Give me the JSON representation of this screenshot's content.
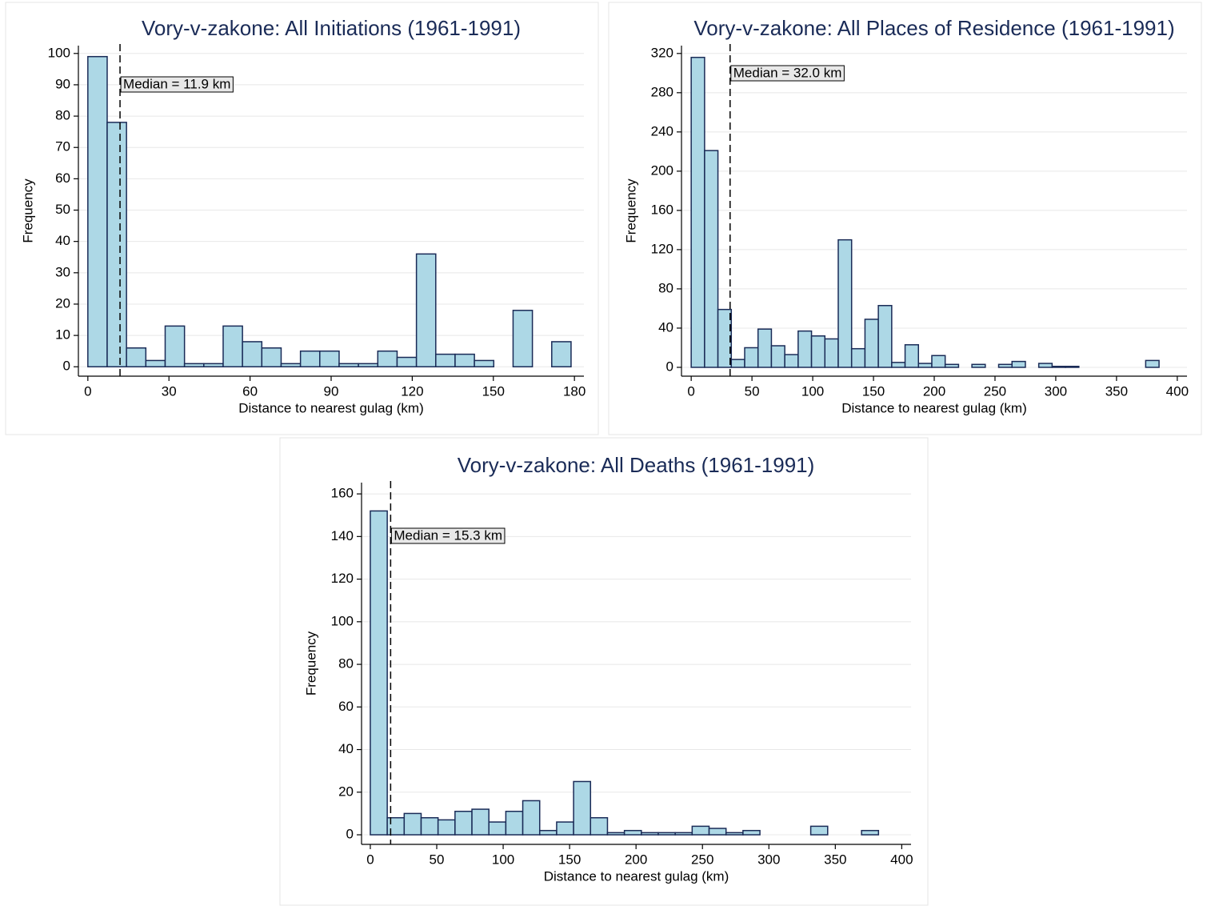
{
  "chart_data": [
    {
      "type": "histogram",
      "title": "Vory-v-zakone: All Initiations (1961-1991)",
      "xlabel": "Distance to nearest gulag (km)",
      "ylabel": "Frequency",
      "bins": [
        0,
        7.15,
        14.3,
        21.45,
        28.6,
        35.75,
        42.9,
        50.05,
        57.2,
        64.35,
        71.5,
        78.65,
        85.8,
        92.95,
        100.1,
        107.25,
        114.4,
        121.55,
        128.7,
        135.85,
        143,
        150.15,
        157.3,
        164.45,
        171.6,
        178.75
      ],
      "values": [
        99,
        78,
        6,
        2,
        13,
        1,
        1,
        13,
        8,
        6,
        1,
        5,
        5,
        1,
        1,
        5,
        3,
        36,
        4,
        4,
        2,
        0,
        18,
        0,
        8
      ],
      "color": "#add8e6",
      "xlim": [
        -3.5,
        183.5
      ],
      "ylim": [
        -3,
        102.5
      ],
      "xticks": [
        0,
        30,
        60,
        90,
        120,
        150,
        180
      ],
      "yticks": [
        0,
        10,
        20,
        30,
        40,
        50,
        60,
        70,
        80,
        90,
        100
      ],
      "grid": true,
      "median": {
        "value": 11.9,
        "label": "Median = 11.9 km"
      }
    },
    {
      "type": "histogram",
      "title": "Vory-v-zakone: All Places of Residence (1961-1991)",
      "xlabel": "Distance to nearest gulag (km)",
      "ylabel": "Frequency",
      "bins": [
        0,
        11,
        22,
        33,
        44,
        55,
        66,
        77,
        88,
        99,
        110,
        121,
        132,
        143,
        154,
        165,
        176,
        187,
        198,
        209,
        220,
        231,
        242,
        253,
        264,
        275,
        286,
        297,
        308,
        319,
        330,
        341,
        352,
        363,
        374,
        385
      ],
      "values": [
        316,
        221,
        59,
        8,
        20,
        39,
        22,
        13,
        37,
        32,
        29,
        130,
        19,
        49,
        63,
        5,
        23,
        4,
        12,
        3,
        0,
        3,
        0,
        3,
        6,
        0,
        4,
        1,
        1,
        0,
        0,
        0,
        0,
        0,
        7
      ],
      "color": "#add8e6",
      "xlim": [
        -8,
        408
      ],
      "ylim": [
        -9,
        328
      ],
      "xticks": [
        0,
        50,
        100,
        150,
        200,
        250,
        300,
        350,
        400
      ],
      "yticks": [
        0,
        40,
        80,
        120,
        160,
        200,
        240,
        280,
        320
      ],
      "grid": true,
      "median": {
        "value": 32.0,
        "label": "Median = 32.0 km"
      }
    },
    {
      "type": "histogram",
      "title": "Vory-v-zakone: All Deaths (1961-1991)",
      "xlabel": "Distance to nearest gulag (km)",
      "ylabel": "Frequency",
      "bins": [
        0,
        12.75,
        25.5,
        38.25,
        51,
        63.75,
        76.5,
        89.25,
        102,
        114.75,
        127.5,
        140.25,
        153,
        165.75,
        178.5,
        191.25,
        204,
        216.75,
        229.5,
        242.25,
        255,
        267.75,
        280.5,
        293.25,
        306,
        318.75,
        331.5,
        344.25,
        357,
        369.75,
        382.5
      ],
      "values": [
        152,
        8,
        10,
        8,
        7,
        11,
        12,
        6,
        11,
        16,
        2,
        6,
        25,
        8,
        1,
        2,
        1,
        1,
        1,
        4,
        3,
        1,
        2,
        0,
        0,
        0,
        4,
        0,
        0,
        2
      ],
      "color": "#add8e6",
      "xlim": [
        -6.6,
        407
      ],
      "ylim": [
        -4.5,
        165.3
      ],
      "xticks": [
        0,
        50,
        100,
        150,
        200,
        250,
        300,
        350,
        400
      ],
      "yticks": [
        0,
        20,
        40,
        60,
        80,
        100,
        120,
        140,
        160
      ],
      "grid": true,
      "median": {
        "value": 15.3,
        "label": "Median = 15.3 km"
      }
    }
  ]
}
